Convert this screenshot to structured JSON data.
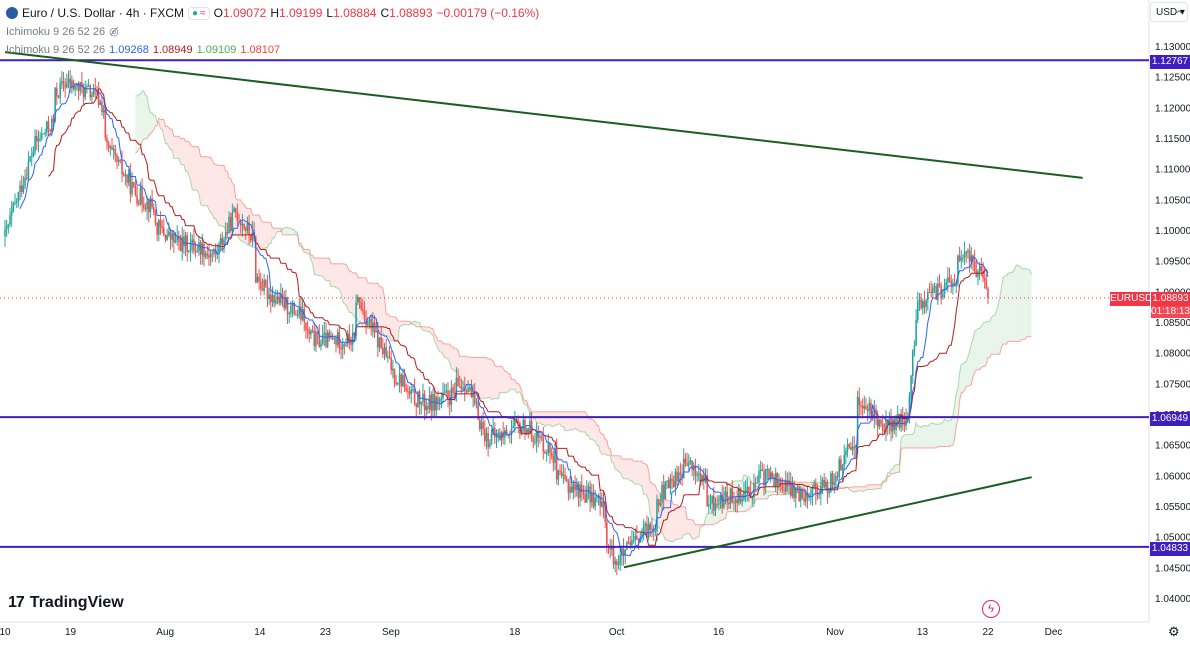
{
  "header": {
    "symbol_title": "Euro / U.S. Dollar · 4h · FXCM",
    "ohlc": [
      {
        "k": "O",
        "v": "1.09072"
      },
      {
        "k": "H",
        "v": "1.09199"
      },
      {
        "k": "L",
        "v": "1.08884"
      },
      {
        "k": "C",
        "v": "1.08893"
      },
      {
        "k": "",
        "v": "−0.00179 (−0.16%)"
      }
    ],
    "indicator_label_1": "Ichimoku 9 26 52 26",
    "indicator_label_2": "Ichimoku 9 26 52 26",
    "ichimoku_values": [
      "1.09268",
      "1.08949",
      "1.09109",
      "1.08107"
    ]
  },
  "currency_button": "USD",
  "brand": "TradingView",
  "last_price": {
    "symbol": "EURUSD",
    "price": "1.08893",
    "countdown": "01:18:13"
  },
  "colors": {
    "up": "#26a69a",
    "down": "#ef5350",
    "conversion": "#2962ff",
    "base": "#b71c1c",
    "kumo_up": "#4caf50",
    "kumo_down": "#f44336",
    "hline": "#3f1fbf",
    "trend": "#1b5e20"
  },
  "chart_data": {
    "type": "candlestick",
    "title": "Euro / U.S. Dollar · 4h · FXCM",
    "y_ticks": [
      "1.13000",
      "1.12500",
      "1.12000",
      "1.11500",
      "1.11000",
      "1.10500",
      "1.10000",
      "1.09500",
      "1.09000",
      "1.08500",
      "1.08000",
      "1.07500",
      "1.07000",
      "1.06500",
      "1.06000",
      "1.05500",
      "1.05000",
      "1.04500",
      "1.04000"
    ],
    "x_ticks": [
      "10",
      "19",
      "Aug",
      "14",
      "23",
      "Sep",
      "18",
      "Oct",
      "16",
      "Nov",
      "13",
      "22",
      "Dec"
    ],
    "ylim": [
      1.0375,
      1.1335
    ],
    "horizontal_levels": [
      1.12767,
      1.06949,
      1.04833
    ],
    "horizontal_level_labels": [
      "1.12767",
      "1.06949",
      "1.04833"
    ],
    "trendlines": [
      {
        "from": [
          "2023-07-10",
          1.129
        ],
        "to": [
          "2023-12-05",
          1.1085
        ]
      },
      {
        "from": [
          "2023-10-03",
          1.045
        ],
        "to": [
          "2023-11-28",
          1.0597
        ]
      }
    ],
    "series_anchors": [
      [
        "2023-07-10",
        1.099
      ],
      [
        "2023-07-13",
        1.114
      ],
      [
        "2023-07-18",
        1.124
      ],
      [
        "2023-07-21",
        1.122
      ],
      [
        "2023-07-27",
        1.106
      ],
      [
        "2023-08-02",
        1.098
      ],
      [
        "2023-08-08",
        1.096
      ],
      [
        "2023-08-10",
        1.103
      ],
      [
        "2023-08-15",
        1.09
      ],
      [
        "2023-08-22",
        1.082
      ],
      [
        "2023-08-26",
        1.082
      ],
      [
        "2023-08-28",
        1.089
      ],
      [
        "2023-09-01",
        1.076
      ],
      [
        "2023-09-06",
        1.0715
      ],
      [
        "2023-09-12",
        1.075
      ],
      [
        "2023-09-14",
        1.066
      ],
      [
        "2023-09-20",
        1.068
      ],
      [
        "2023-09-25",
        1.0595
      ],
      [
        "2023-09-29",
        1.056
      ],
      [
        "2023-10-03",
        1.046
      ],
      [
        "2023-10-09",
        1.056
      ],
      [
        "2023-10-12",
        1.062
      ],
      [
        "2023-10-16",
        1.055
      ],
      [
        "2023-10-24",
        1.06
      ],
      [
        "2023-10-27",
        1.057
      ],
      [
        "2023-11-01",
        1.058
      ],
      [
        "2023-11-06",
        1.072
      ],
      [
        "2023-11-09",
        1.068
      ],
      [
        "2023-11-13",
        1.07
      ],
      [
        "2023-11-14",
        1.088
      ],
      [
        "2023-11-17",
        1.091
      ],
      [
        "2023-11-21",
        1.096
      ],
      [
        "2023-11-23",
        1.0905
      ]
    ],
    "ichimoku": {
      "conversion": 1.09268,
      "base": 1.08949,
      "span_a": 1.09109,
      "span_b": 1.08107
    },
    "last_close": 1.08893,
    "grid": false
  }
}
